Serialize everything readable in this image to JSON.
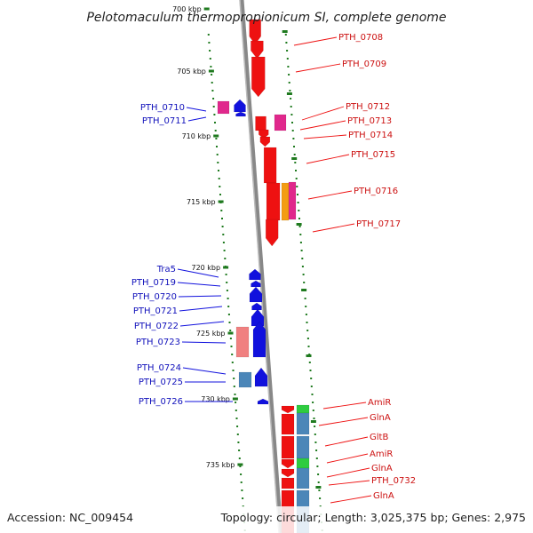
{
  "title": "Pelotomaculum thermopropionicum SI, complete genome",
  "footer": {
    "accession": "Accession: NC_009454",
    "topology": "Topology: circular; Length: 3,025,375 bp; Genes: 2,975"
  },
  "colors": {
    "axis": "#8a8a8a",
    "tick": "#1f7a1f",
    "forward_gene": "#ee1111",
    "reverse_gene": "#1111dd",
    "pink": "#e0288c",
    "salmon": "#f08080",
    "steel": "#4b86b8",
    "orange": "#f39c12",
    "green": "#2ecc40"
  },
  "ticks": [
    {
      "kbp": 700,
      "label": "700 kbp"
    },
    {
      "kbp": 705,
      "label": "705 kbp"
    },
    {
      "kbp": 710,
      "label": "710 kbp"
    },
    {
      "kbp": 715,
      "label": "715 kbp"
    },
    {
      "kbp": 720,
      "label": "720 kbp"
    },
    {
      "kbp": 725,
      "label": "725 kbp"
    },
    {
      "kbp": 730,
      "label": "730 kbp"
    },
    {
      "kbp": 735,
      "label": "735 kbp"
    }
  ],
  "labels_right": [
    "PTH_0708",
    "PTH_0709",
    "PTH_0712",
    "PTH_0713",
    "PTH_0714",
    "PTH_0715",
    "PTH_0716",
    "PTH_0717",
    "AmiR",
    "GlnA",
    "GltB",
    "AmiR",
    "GlnA",
    "PTH_0732",
    "GlnA"
  ],
  "labels_left": [
    "PTH_0710",
    "PTH_0711",
    "Tra5",
    "PTH_0719",
    "PTH_0720",
    "PTH_0721",
    "PTH_0722",
    "PTH_0723",
    "PTH_0724",
    "PTH_0725",
    "PTH_0726"
  ]
}
